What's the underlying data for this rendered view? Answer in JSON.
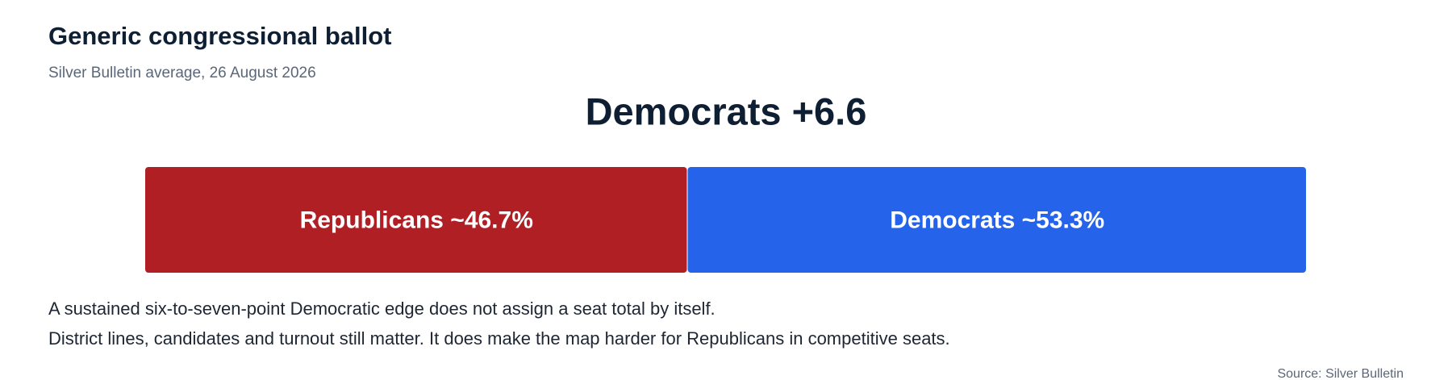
{
  "chart_data": {
    "type": "stacked-bar",
    "orientation": "horizontal",
    "title": "Generic congressional ballot",
    "subtitle": "Silver Bulletin average, 26 August 2026",
    "headline": "Democrats +6.6",
    "xlim": [
      0,
      100
    ],
    "series": [
      {
        "color": "#b01f24",
        "values": [
          46.7
        ],
        "value_labels": [
          "Republicans ~46.7%"
        ]
      },
      {
        "color": "#2563eb",
        "values": [
          53.3
        ],
        "value_labels": [
          "Democrats ~53.3%"
        ]
      }
    ],
    "notes": [
      "A sustained six-to-seven-point Democratic edge does not assign a seat total by itself.",
      "District lines, candidates and turnout still matter. It does make the map harder for Republicans in competitive seats."
    ],
    "source": "Source: Silver Bulletin"
  }
}
